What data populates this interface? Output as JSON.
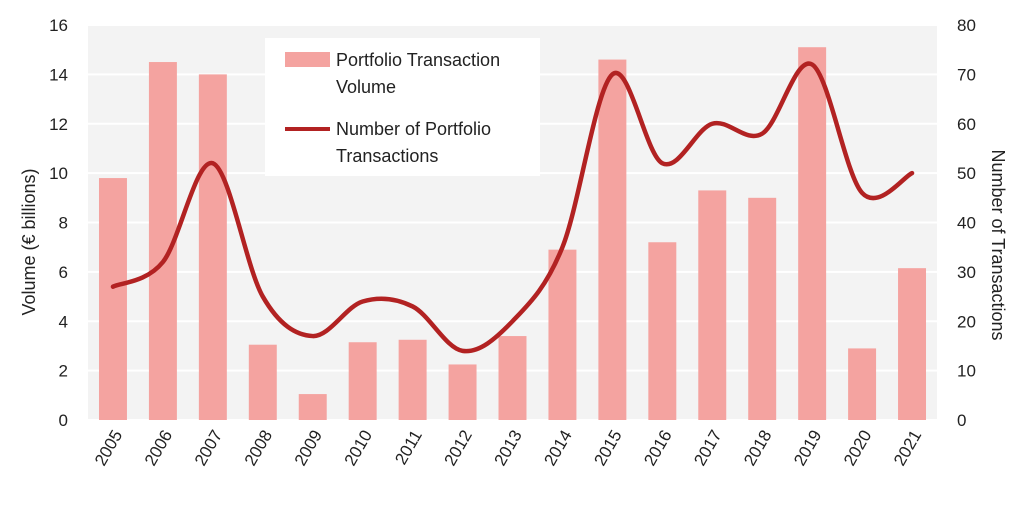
{
  "chart_data": {
    "type": "bar+line",
    "categories": [
      "2005",
      "2006",
      "2007",
      "2008",
      "2009",
      "2010",
      "2011",
      "2012",
      "2013",
      "2014",
      "2015",
      "2016",
      "2017",
      "2018",
      "2019",
      "2020",
      "2021"
    ],
    "series": [
      {
        "name": "Portfolio Transaction Volume",
        "type": "bar",
        "axis": "left",
        "color": "#f4a3a0",
        "values": [
          9.8,
          14.5,
          14.0,
          3.05,
          1.05,
          3.15,
          3.25,
          2.25,
          3.4,
          6.9,
          14.6,
          7.2,
          9.3,
          9.0,
          15.1,
          2.9,
          6.15
        ]
      },
      {
        "name": "Number of Portfolio Transactions",
        "type": "line",
        "axis": "right",
        "color": "#b22222",
        "values": [
          27,
          32,
          52,
          25,
          17,
          24,
          23,
          14,
          20,
          35,
          70,
          52,
          60,
          58,
          72,
          46,
          50
        ]
      }
    ],
    "ylabel_left": "Volume (€ billions)",
    "ylabel_right": "Number of Transactions",
    "ylim_left": [
      0,
      16
    ],
    "yticks_left": [
      "0",
      "2",
      "4",
      "6",
      "8",
      "10",
      "12",
      "14",
      "16"
    ],
    "ylim_right": [
      0,
      80
    ],
    "yticks_right": [
      "0",
      "10",
      "20",
      "30",
      "40",
      "50",
      "60",
      "70",
      "80"
    ],
    "legend_position": "top-center",
    "legend": [
      {
        "lines": [
          "Portfolio Transaction",
          "Volume"
        ]
      },
      {
        "lines": [
          "Number of Portfolio",
          "Transactions"
        ]
      }
    ],
    "grid": true,
    "plot_background": "#f3f3f3"
  }
}
